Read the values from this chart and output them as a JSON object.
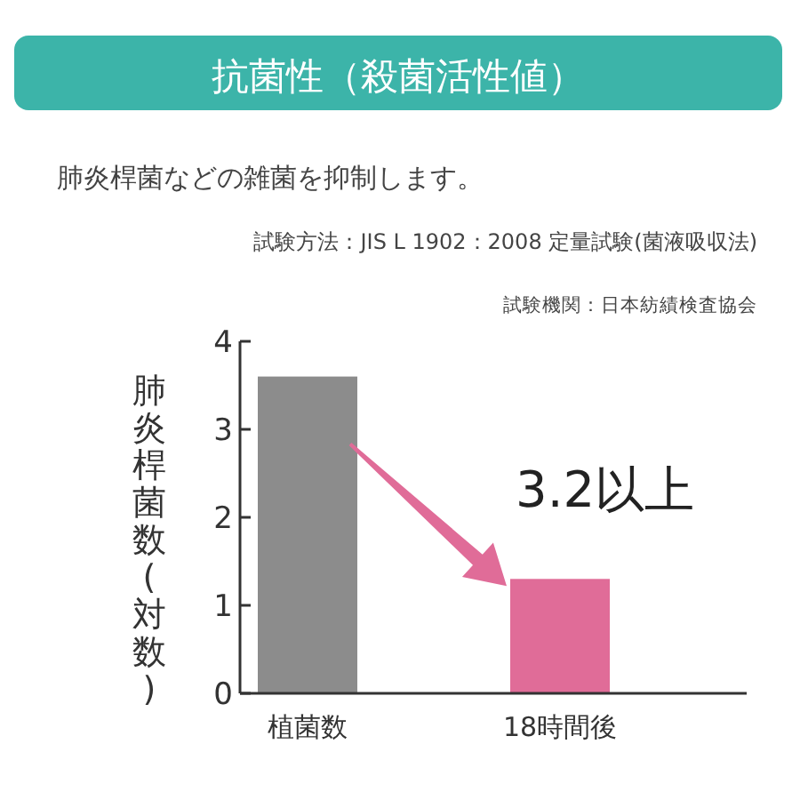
{
  "chart_data": {
    "type": "bar",
    "title": "抗菌性（殺菌活性値）",
    "subtitle": "肺炎桿菌などの雑菌を抑制します。",
    "ylabel": "肺炎桿菌数(対数)",
    "categories": [
      "植菌数",
      "18時間後"
    ],
    "values": [
      3.6,
      1.3
    ],
    "colors": [
      "#8c8c8c",
      "#e06c98"
    ],
    "ylim": [
      0,
      4
    ],
    "yticks": [
      0,
      1,
      2,
      3,
      4
    ],
    "grid": false,
    "annotations": [
      "試験方法：JIS L 1902：2008 定量試験(菌液吸収法)",
      "試験機関：日本紡績検査協会",
      "3.2以上"
    ]
  }
}
